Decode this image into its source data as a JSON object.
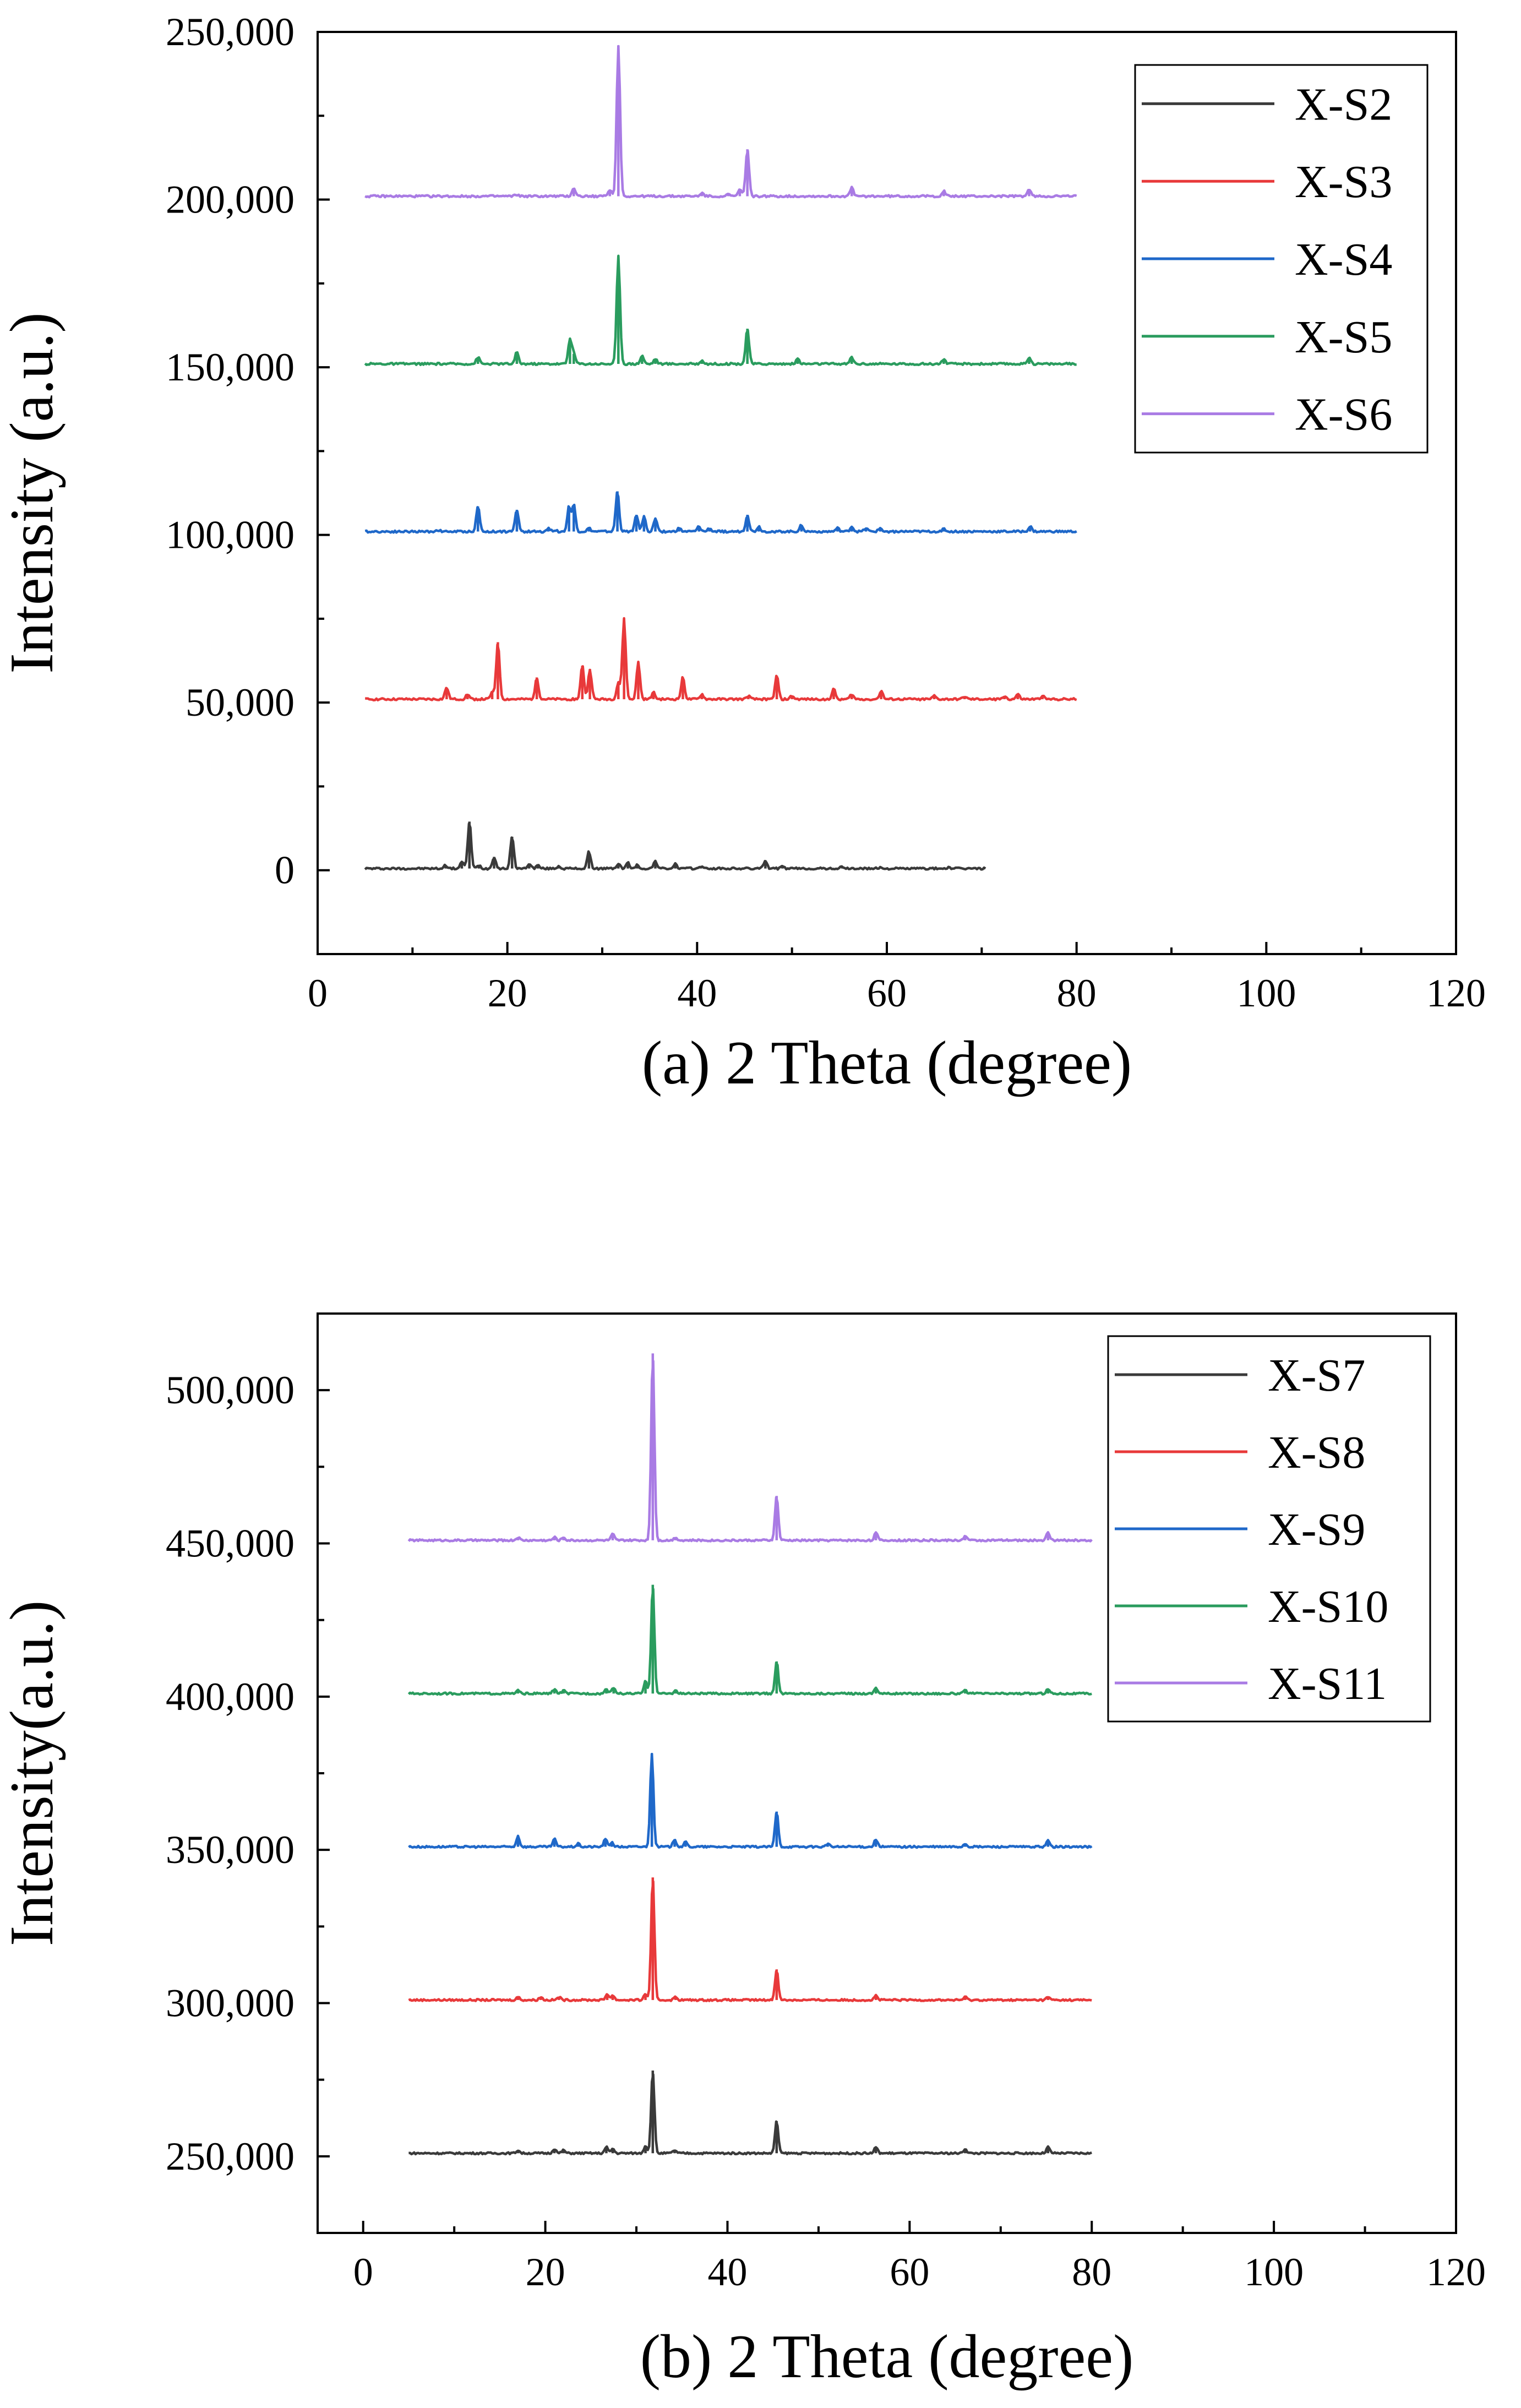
{
  "chart_data": [
    {
      "type": "line",
      "title": "",
      "xlabel": "(a) 2 Theta (degree)",
      "ylabel": "Intensity (a.u.)",
      "xlim": [
        0,
        120
      ],
      "ylim": [
        -25000,
        250000
      ],
      "xticks": [
        0,
        20,
        40,
        60,
        80,
        100,
        120
      ],
      "yticks": [
        0,
        50000,
        100000,
        150000,
        200000,
        250000
      ],
      "xtick_labels": [
        "0",
        "20",
        "40",
        "60",
        "80",
        "100",
        "120"
      ],
      "ytick_labels": [
        "0",
        "50,000",
        "100,000",
        "150,000",
        "200,000",
        "250,000"
      ],
      "legend_position": "top-right",
      "series": [
        {
          "name": "X-S2",
          "color": "#3a3a3a",
          "baseline": 500,
          "x_range": [
            5,
            70.5
          ],
          "peaks": [
            [
              13.5,
              1500
            ],
            [
              15.2,
              2500
            ],
            [
              16.0,
              14500
            ],
            [
              17.0,
              1500
            ],
            [
              18.6,
              4000
            ],
            [
              20.5,
              10000
            ],
            [
              22.3,
              2000
            ],
            [
              23.2,
              1500
            ],
            [
              25.4,
              1200
            ],
            [
              28.6,
              5500
            ],
            [
              31.7,
              2000
            ],
            [
              32.7,
              2200
            ],
            [
              33.7,
              1500
            ],
            [
              35.6,
              2800
            ],
            [
              37.7,
              1800
            ],
            [
              40.4,
              1200
            ],
            [
              47.2,
              3000
            ],
            [
              49.0,
              1000
            ],
            [
              55.3,
              1000
            ],
            [
              59.3,
              800
            ],
            [
              66.5,
              800
            ]
          ]
        },
        {
          "name": "X-S3",
          "color": "#e8393a",
          "baseline": 51000,
          "x_range": [
            5,
            80
          ],
          "peaks": [
            [
              13.6,
              54500
            ],
            [
              15.8,
              52500
            ],
            [
              18.4,
              53000
            ],
            [
              19.0,
              68000
            ],
            [
              23.1,
              57500
            ],
            [
              27.9,
              61000
            ],
            [
              28.7,
              60000
            ],
            [
              31.7,
              56000
            ],
            [
              32.3,
              75000
            ],
            [
              33.8,
              62000
            ],
            [
              35.4,
              53000
            ],
            [
              38.5,
              57500
            ],
            [
              40.5,
              52500
            ],
            [
              45.4,
              52000
            ],
            [
              48.4,
              58000
            ],
            [
              50.0,
              52000
            ],
            [
              54.4,
              54000
            ],
            [
              56.3,
              52500
            ],
            [
              59.4,
              53500
            ],
            [
              65.0,
              52000
            ],
            [
              68.2,
              51800
            ],
            [
              72.4,
              52000
            ],
            [
              73.8,
              52500
            ],
            [
              76.4,
              52000
            ]
          ]
        },
        {
          "name": "X-S4",
          "color": "#1f68c9",
          "baseline": 101000,
          "x_range": [
            5,
            80
          ],
          "peaks": [
            [
              12.7,
              101500
            ],
            [
              16.9,
              108500
            ],
            [
              21.0,
              107500
            ],
            [
              24.3,
              102000
            ],
            [
              25.0,
              101500
            ],
            [
              26.5,
              108500
            ],
            [
              27.0,
              109000
            ],
            [
              28.6,
              102000
            ],
            [
              31.6,
              113000
            ],
            [
              33.6,
              106000
            ],
            [
              34.4,
              105500
            ],
            [
              35.6,
              105000
            ],
            [
              38.1,
              102000
            ],
            [
              40.2,
              102500
            ],
            [
              41.3,
              102000
            ],
            [
              45.3,
              106000
            ],
            [
              46.5,
              102500
            ],
            [
              51.0,
              103000
            ],
            [
              54.8,
              102000
            ],
            [
              56.3,
              102500
            ],
            [
              57.8,
              102000
            ],
            [
              59.3,
              102000
            ],
            [
              66.0,
              101800
            ],
            [
              75.1,
              102500
            ]
          ]
        },
        {
          "name": "X-S5",
          "color": "#2a9c5e",
          "baseline": 151000,
          "x_range": [
            5,
            80
          ],
          "peaks": [
            [
              16.9,
              153000
            ],
            [
              21.0,
              154500
            ],
            [
              26.6,
              158500
            ],
            [
              27.0,
              154000
            ],
            [
              31.7,
              183000
            ],
            [
              34.2,
              153500
            ],
            [
              35.6,
              152500
            ],
            [
              40.5,
              152000
            ],
            [
              45.3,
              161500
            ],
            [
              50.6,
              152500
            ],
            [
              56.3,
              153000
            ],
            [
              66.0,
              152500
            ],
            [
              75.0,
              153000
            ]
          ]
        },
        {
          "name": "X-S6",
          "color": "#a97be4",
          "baseline": 201000,
          "x_range": [
            5,
            80
          ],
          "peaks": [
            [
              21.0,
              201500
            ],
            [
              27.0,
              203500
            ],
            [
              30.8,
              203000
            ],
            [
              31.7,
              246000
            ],
            [
              40.5,
              202000
            ],
            [
              43.3,
              201500
            ],
            [
              44.5,
              203000
            ],
            [
              45.3,
              215000
            ],
            [
              56.3,
              203500
            ],
            [
              66.0,
              202500
            ],
            [
              75.0,
              203000
            ]
          ]
        }
      ]
    },
    {
      "type": "line",
      "title": "",
      "xlabel": "(b) 2 Theta (degree)",
      "ylabel": "Intensity(a.u.)",
      "xlim": [
        -5,
        120
      ],
      "ylim": [
        225000,
        525000
      ],
      "xticks": [
        0,
        20,
        40,
        60,
        80,
        100,
        120
      ],
      "yticks": [
        250000,
        300000,
        350000,
        400000,
        450000,
        500000
      ],
      "xtick_labels": [
        "0",
        "20",
        "40",
        "60",
        "80",
        "100",
        "120"
      ],
      "ytick_labels": [
        "250,000",
        "300,000",
        "350,000",
        "400,000",
        "450,000",
        "500,000"
      ],
      "legend_position": "top-right",
      "series": [
        {
          "name": "X-S7",
          "color": "#3a3a3a",
          "baseline": 251000,
          "x_range": [
            5,
            80
          ],
          "peaks": [
            [
              17.0,
              252000
            ],
            [
              21.0,
              252500
            ],
            [
              22.0,
              252000
            ],
            [
              26.7,
              253000
            ],
            [
              27.4,
              252500
            ],
            [
              31.0,
              253500
            ],
            [
              31.8,
              278000
            ],
            [
              34.2,
              252000
            ],
            [
              45.4,
              261500
            ],
            [
              56.3,
              253000
            ],
            [
              66.1,
              252500
            ],
            [
              75.2,
              253000
            ]
          ]
        },
        {
          "name": "X-S8",
          "color": "#e8393a",
          "baseline": 301000,
          "x_range": [
            5,
            80
          ],
          "peaks": [
            [
              17.0,
              302000
            ],
            [
              19.5,
              302000
            ],
            [
              21.5,
              302000
            ],
            [
              26.8,
              303000
            ],
            [
              27.4,
              302500
            ],
            [
              31.0,
              303000
            ],
            [
              31.8,
              341000
            ],
            [
              34.3,
              302000
            ],
            [
              45.4,
              311000
            ],
            [
              56.3,
              302500
            ],
            [
              66.1,
              302000
            ],
            [
              75.2,
              302000
            ]
          ]
        },
        {
          "name": "X-S9",
          "color": "#1f68c9",
          "baseline": 351000,
          "x_range": [
            5,
            80
          ],
          "peaks": [
            [
              17.0,
              354500
            ],
            [
              21.0,
              353500
            ],
            [
              23.6,
              352000
            ],
            [
              26.6,
              353500
            ],
            [
              27.3,
              352500
            ],
            [
              31.7,
              381500
            ],
            [
              34.2,
              353500
            ],
            [
              35.4,
              352500
            ],
            [
              45.4,
              362500
            ],
            [
              51.0,
              352000
            ],
            [
              56.3,
              353500
            ],
            [
              66.1,
              352000
            ],
            [
              75.2,
              353000
            ]
          ]
        },
        {
          "name": "X-S10",
          "color": "#2a9c5e",
          "baseline": 401000,
          "x_range": [
            5,
            80
          ],
          "peaks": [
            [
              17.0,
              402000
            ],
            [
              21.0,
              402500
            ],
            [
              22.0,
              402000
            ],
            [
              26.7,
              402500
            ],
            [
              27.5,
              403000
            ],
            [
              31.0,
              405000
            ],
            [
              31.8,
              436500
            ],
            [
              34.3,
              402000
            ],
            [
              45.4,
              411500
            ],
            [
              56.3,
              403000
            ],
            [
              66.1,
              402000
            ],
            [
              75.2,
              402500
            ]
          ]
        },
        {
          "name": "X-S11",
          "color": "#a97be4",
          "baseline": 451000,
          "x_range": [
            5,
            80
          ],
          "peaks": [
            [
              17.0,
              452000
            ],
            [
              21.0,
              452000
            ],
            [
              22.0,
              452000
            ],
            [
              27.4,
              453000
            ],
            [
              31.8,
              512000
            ],
            [
              34.3,
              452000
            ],
            [
              45.4,
              465500
            ],
            [
              56.3,
              453500
            ],
            [
              66.1,
              452500
            ],
            [
              75.2,
              453500
            ]
          ]
        }
      ]
    }
  ]
}
